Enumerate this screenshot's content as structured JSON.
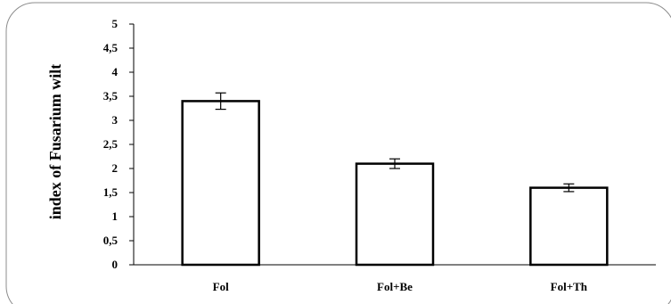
{
  "chart_data": {
    "type": "bar",
    "categories": [
      "Fol",
      "Fol+Be",
      "Fol+Th"
    ],
    "values": [
      3.4,
      2.1,
      1.6
    ],
    "error": [
      0.17,
      0.1,
      0.08
    ],
    "ylabel": "index of Fusarium wilt",
    "ylim": [
      0,
      5
    ],
    "y_ticks": [
      "0",
      "0,5",
      "1",
      "1,5",
      "2",
      "2,5",
      "3",
      "3,5",
      "4",
      "4,5",
      "5"
    ],
    "grid": false,
    "legend": "none",
    "colors": {
      "bar_fill": "#ffffff",
      "bar_stroke": "#000000",
      "frame_stroke": "#8c8c8c"
    }
  }
}
